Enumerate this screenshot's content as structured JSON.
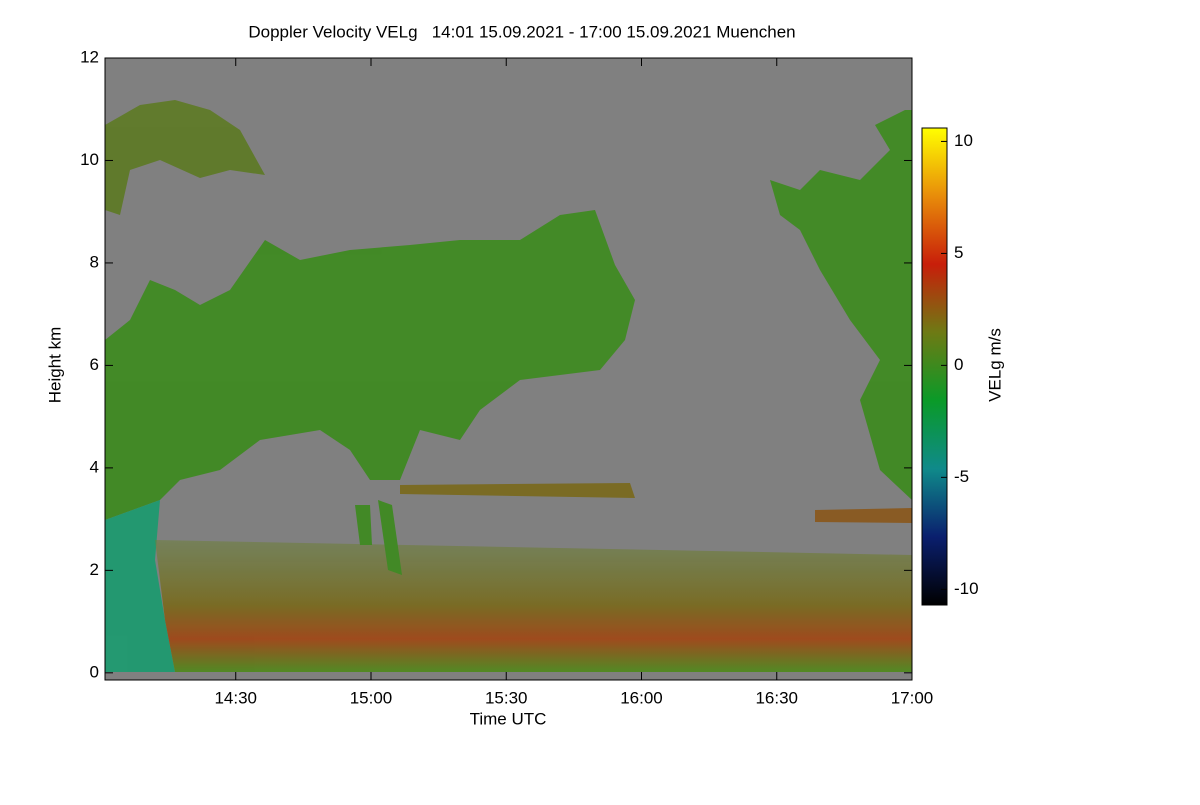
{
  "chart_data": {
    "type": "heatmap",
    "title": "Doppler Velocity VELg   14:01 15.09.2021 - 17:00 15.09.2021 Muenchen",
    "x_label": "Time UTC",
    "y_label": "Height km",
    "xlim": [
      14.0167,
      17
    ],
    "xticks": [
      {
        "value": 14.5,
        "label": "14:30"
      },
      {
        "value": 15,
        "label": "15:00"
      },
      {
        "value": 15.5,
        "label": "15:30"
      },
      {
        "value": 16,
        "label": "16:00"
      },
      {
        "value": 16.5,
        "label": "16:30"
      },
      {
        "value": 17,
        "label": "17:00"
      }
    ],
    "ylim": [
      -0.14,
      12
    ],
    "yticks": [
      0,
      2,
      4,
      6,
      8,
      10,
      12
    ],
    "colorbar": {
      "label": "VELg m/s",
      "lim": [
        -10.7,
        10.6
      ],
      "ticks": [
        -10,
        -5,
        0,
        5,
        10
      ],
      "colors": [
        "#000000",
        "#0a1f6e",
        "#0f8a8a",
        "#0a9a28",
        "#6e7a14",
        "#c81e0a",
        "#e88c0a",
        "#ffff00"
      ]
    },
    "background": "#808080"
  }
}
